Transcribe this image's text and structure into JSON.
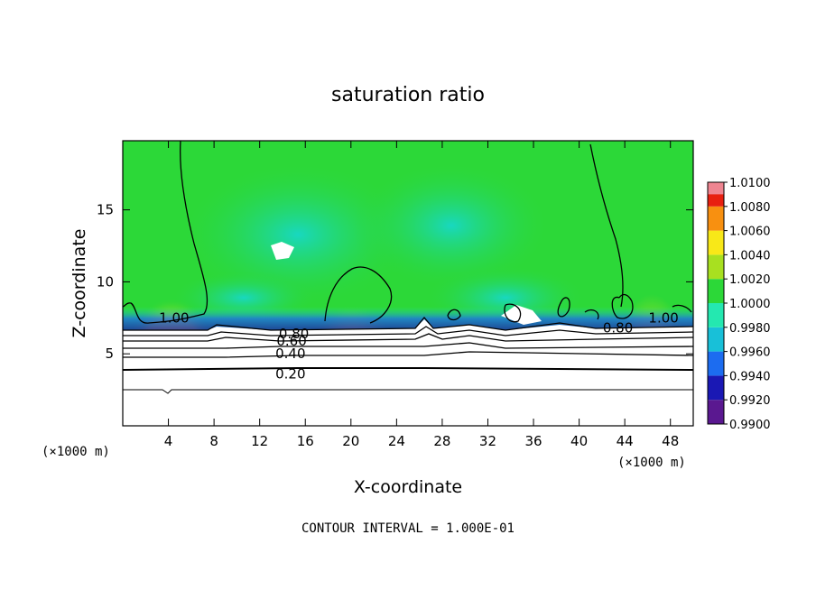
{
  "chart_data": {
    "type": "heatmap",
    "title": "saturation ratio",
    "xlabel": "X-coordinate",
    "ylabel": "Z-coordinate",
    "x_unit_left": "(×1000 m)",
    "x_unit_right": "(×1000 m)",
    "xlim": [
      0,
      50
    ],
    "ylim": [
      0,
      19.8
    ],
    "x_ticks": [
      4,
      8,
      12,
      16,
      20,
      24,
      28,
      32,
      36,
      40,
      44,
      48
    ],
    "y_ticks": [
      5,
      10,
      15
    ],
    "colorbar": {
      "levels": [
        "0.9900",
        "0.9920",
        "0.9940",
        "0.9960",
        "0.9980",
        "1.0000",
        "1.0020",
        "1.0040",
        "1.0060",
        "1.0080",
        "1.0100"
      ],
      "colors": [
        "#5a1890",
        "#1a18b4",
        "#1c6cf0",
        "#18c0d8",
        "#24e8b0",
        "#2cd838",
        "#a8e020",
        "#f8e818",
        "#f89010",
        "#e82010",
        "#f090a0"
      ]
    },
    "contour_labels": [
      {
        "text": "1.00",
        "x": 4.5,
        "z": 7.5
      },
      {
        "text": "0.80",
        "x": 15.0,
        "z": 6.4
      },
      {
        "text": "0.60",
        "x": 14.8,
        "z": 5.9
      },
      {
        "text": "0.40",
        "x": 14.7,
        "z": 5.0
      },
      {
        "text": "0.20",
        "x": 14.7,
        "z": 3.6
      },
      {
        "text": "0.80",
        "x": 43.4,
        "z": 6.8
      },
      {
        "text": "1.00",
        "x": 47.4,
        "z": 7.5
      }
    ],
    "grid": false,
    "legend": "right"
  },
  "footer": {
    "contour_interval": "CONTOUR INTERVAL = 1.000E-01"
  }
}
